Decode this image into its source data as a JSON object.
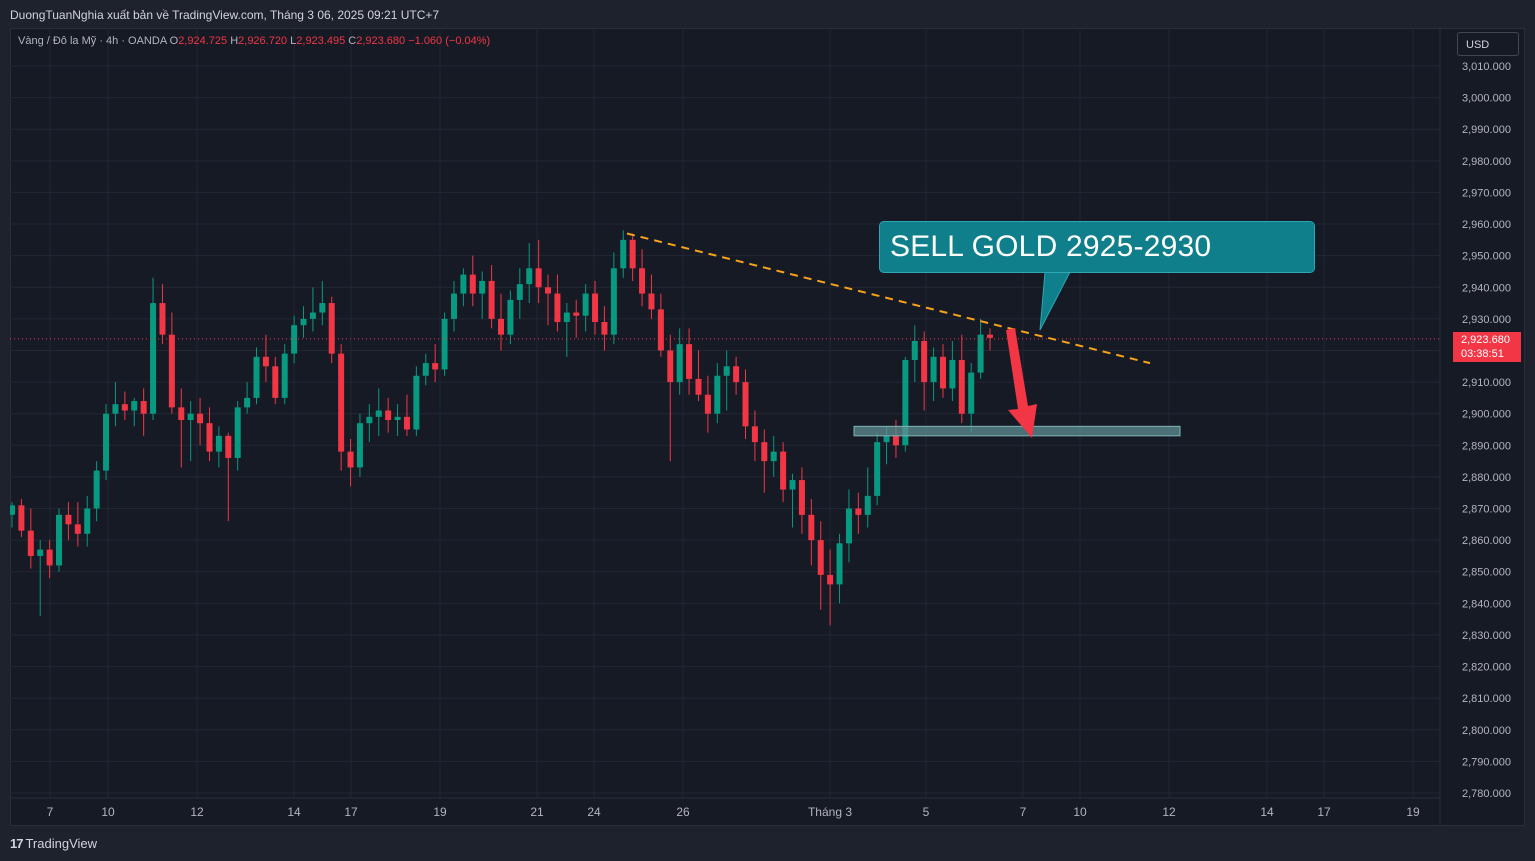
{
  "header": {
    "publisher_line": "DuongTuanNghia xuất bản về TradingView.com, Tháng 3 06, 2025 09:21 UTC+7"
  },
  "legend": {
    "symbol": "Vàng / Đô la Mỹ · 4h · OANDA",
    "o_label": "O",
    "o_value": "2,924.725",
    "h_label": "H",
    "h_value": "2,926.720",
    "l_label": "L",
    "l_value": "2,923.495",
    "c_label": "C",
    "c_value": "2,923.680",
    "change": "−1.060 (−0.04%)"
  },
  "toolbar": {
    "currency": "USD"
  },
  "last_price": {
    "price": "2,923.680",
    "countdown": "03:38:51"
  },
  "annotation": {
    "text": "SELL GOLD 2925-2930"
  },
  "footer": {
    "brand": "TradingView",
    "brand_icon": "tradingview-logo-icon"
  },
  "colors": {
    "up": "#089981",
    "down": "#f23645",
    "trendline": "#f7a21b",
    "callout": "#0e7f8b",
    "zone": "#5d8f93",
    "arrow": "#f23645"
  },
  "chart_data": {
    "type": "candlestick",
    "symbol": "XAU/USD",
    "timeframe": "4h",
    "ylim": [
      2775,
      3015
    ],
    "y_ticks": [
      "2,780.000",
      "2,790.000",
      "2,800.000",
      "2,810.000",
      "2,820.000",
      "2,830.000",
      "2,840.000",
      "2,850.000",
      "2,860.000",
      "2,870.000",
      "2,880.000",
      "2,890.000",
      "2,900.000",
      "2,910.000",
      "2,920.000",
      "2,930.000",
      "2,940.000",
      "2,950.000",
      "2,960.000",
      "2,970.000",
      "2,980.000",
      "2,990.000",
      "3,000.000",
      "3,010.000"
    ],
    "x_ticks": [
      "7",
      "10",
      "12",
      "14",
      "17",
      "19",
      "21",
      "24",
      "26",
      "Tháng 3",
      "5",
      "7",
      "10",
      "12",
      "14",
      "17",
      "19"
    ],
    "grid": true,
    "candles": [
      [
        2868,
        2872,
        2864,
        2871
      ],
      [
        2871,
        2873,
        2861,
        2863
      ],
      [
        2863,
        2870,
        2851,
        2855
      ],
      [
        2855,
        2860,
        2836,
        2857
      ],
      [
        2857,
        2860,
        2848,
        2852
      ],
      [
        2852,
        2870,
        2850,
        2868
      ],
      [
        2868,
        2872,
        2860,
        2865
      ],
      [
        2865,
        2872,
        2858,
        2862
      ],
      [
        2862,
        2874,
        2858,
        2870
      ],
      [
        2870,
        2885,
        2866,
        2882
      ],
      [
        2882,
        2903,
        2879,
        2900
      ],
      [
        2900,
        2910,
        2896,
        2903
      ],
      [
        2903,
        2907,
        2898,
        2901
      ],
      [
        2901,
        2905,
        2896,
        2904
      ],
      [
        2904,
        2908,
        2893,
        2900
      ],
      [
        2900,
        2943,
        2898,
        2935
      ],
      [
        2935,
        2941,
        2922,
        2925
      ],
      [
        2925,
        2932,
        2900,
        2902
      ],
      [
        2902,
        2908,
        2883,
        2898
      ],
      [
        2898,
        2904,
        2885,
        2900
      ],
      [
        2900,
        2905,
        2890,
        2897
      ],
      [
        2897,
        2902,
        2885,
        2888
      ],
      [
        2888,
        2896,
        2883,
        2893
      ],
      [
        2893,
        2894,
        2866,
        2886
      ],
      [
        2886,
        2904,
        2882,
        2902
      ],
      [
        2902,
        2910,
        2900,
        2905
      ],
      [
        2905,
        2921,
        2903,
        2918
      ],
      [
        2918,
        2925,
        2910,
        2915
      ],
      [
        2915,
        2918,
        2903,
        2905
      ],
      [
        2905,
        2922,
        2903,
        2919
      ],
      [
        2919,
        2931,
        2916,
        2928
      ],
      [
        2928,
        2934,
        2924,
        2930
      ],
      [
        2930,
        2940,
        2926,
        2932
      ],
      [
        2932,
        2942,
        2928,
        2935
      ],
      [
        2935,
        2937,
        2916,
        2919
      ],
      [
        2919,
        2922,
        2882,
        2888
      ],
      [
        2888,
        2892,
        2877,
        2883
      ],
      [
        2883,
        2900,
        2880,
        2897
      ],
      [
        2897,
        2903,
        2891,
        2899
      ],
      [
        2899,
        2908,
        2893,
        2901
      ],
      [
        2901,
        2905,
        2894,
        2898
      ],
      [
        2898,
        2903,
        2893,
        2899
      ],
      [
        2899,
        2906,
        2893,
        2895
      ],
      [
        2895,
        2915,
        2893,
        2912
      ],
      [
        2912,
        2919,
        2909,
        2916
      ],
      [
        2916,
        2922,
        2910,
        2914
      ],
      [
        2914,
        2932,
        2912,
        2930
      ],
      [
        2930,
        2942,
        2926,
        2938
      ],
      [
        2938,
        2946,
        2934,
        2944
      ],
      [
        2944,
        2950,
        2934,
        2938
      ],
      [
        2938,
        2945,
        2930,
        2942
      ],
      [
        2942,
        2947,
        2927,
        2930
      ],
      [
        2930,
        2938,
        2920,
        2925
      ],
      [
        2925,
        2939,
        2922,
        2936
      ],
      [
        2936,
        2946,
        2930,
        2941
      ],
      [
        2941,
        2954,
        2935,
        2946
      ],
      [
        2946,
        2955,
        2935,
        2940
      ],
      [
        2940,
        2944,
        2928,
        2938
      ],
      [
        2938,
        2944,
        2926,
        2929
      ],
      [
        2929,
        2935,
        2918,
        2932
      ],
      [
        2932,
        2936,
        2924,
        2931
      ],
      [
        2931,
        2941,
        2926,
        2938
      ],
      [
        2938,
        2942,
        2925,
        2929
      ],
      [
        2929,
        2934,
        2920,
        2925
      ],
      [
        2925,
        2951,
        2922,
        2946
      ],
      [
        2946,
        2958,
        2943,
        2955
      ],
      [
        2955,
        2957,
        2942,
        2946
      ],
      [
        2946,
        2952,
        2934,
        2938
      ],
      [
        2938,
        2944,
        2930,
        2933
      ],
      [
        2933,
        2938,
        2918,
        2920
      ],
      [
        2920,
        2925,
        2885,
        2910
      ],
      [
        2910,
        2927,
        2906,
        2922
      ],
      [
        2922,
        2927,
        2906,
        2911
      ],
      [
        2911,
        2920,
        2904,
        2906
      ],
      [
        2906,
        2912,
        2894,
        2900
      ],
      [
        2900,
        2916,
        2897,
        2912
      ],
      [
        2912,
        2920,
        2901,
        2915
      ],
      [
        2915,
        2918,
        2906,
        2910
      ],
      [
        2910,
        2914,
        2892,
        2896
      ],
      [
        2896,
        2901,
        2885,
        2891
      ],
      [
        2891,
        2895,
        2875,
        2885
      ],
      [
        2885,
        2893,
        2880,
        2888
      ],
      [
        2888,
        2891,
        2872,
        2876
      ],
      [
        2876,
        2881,
        2864,
        2879
      ],
      [
        2879,
        2883,
        2862,
        2868
      ],
      [
        2868,
        2873,
        2852,
        2860
      ],
      [
        2860,
        2866,
        2838,
        2849
      ],
      [
        2849,
        2857,
        2833,
        2846
      ],
      [
        2846,
        2862,
        2840,
        2859
      ],
      [
        2859,
        2876,
        2853,
        2870
      ],
      [
        2870,
        2875,
        2862,
        2868
      ],
      [
        2868,
        2883,
        2864,
        2874
      ],
      [
        2874,
        2894,
        2871,
        2891
      ],
      [
        2891,
        2896,
        2884,
        2893
      ],
      [
        2893,
        2898,
        2886,
        2890
      ],
      [
        2890,
        2918,
        2888,
        2917
      ],
      [
        2917,
        2928,
        2910,
        2923
      ],
      [
        2923,
        2926,
        2901,
        2910
      ],
      [
        2910,
        2921,
        2904,
        2918
      ],
      [
        2918,
        2922,
        2905,
        2908
      ],
      [
        2908,
        2923,
        2904,
        2917
      ],
      [
        2917,
        2925,
        2897,
        2900
      ],
      [
        2900,
        2916,
        2894,
        2913
      ],
      [
        2913,
        2930,
        2911,
        2925
      ],
      [
        2925,
        2927,
        2920,
        2924
      ]
    ],
    "trendline": {
      "from": [
        2955,
        2957
      ],
      "to": [
        3004,
        2916
      ],
      "style": "dashed"
    },
    "support_zone": {
      "low": 2893,
      "high": 2896
    },
    "annotation": "SELL GOLD 2925-2930"
  }
}
